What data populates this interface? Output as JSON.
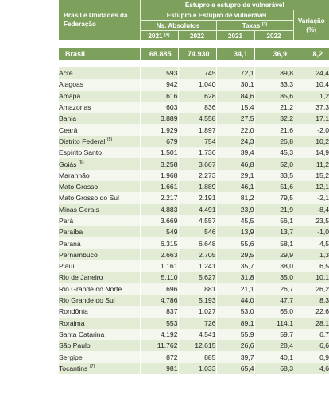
{
  "header": {
    "group_title": "Estupro e estupro de vulnerável",
    "sub_title": "Estupro e Estupro de vulnerável",
    "row_label_line1": "Brasil e Unidades da",
    "row_label_line2": "Federação",
    "abs_label": "Ns. Absolutos",
    "rate_label": "Taxas",
    "rate_note": "(3)",
    "var_label_line1": "Variação",
    "var_label_line2": "(%)",
    "year_2021": "2021",
    "year_2021_note": "(4)",
    "year_2022": "2022"
  },
  "total": {
    "uf": "Brasil",
    "abs2021": "68.885",
    "abs2022": "74.930",
    "rate2021": "34,1",
    "rate2022": "36,9",
    "var": "8,2"
  },
  "rows": [
    {
      "uf": "Acre",
      "note": "",
      "abs2021": "593",
      "abs2022": "745",
      "rate2021": "72,1",
      "rate2022": "89,8",
      "var": "24,4"
    },
    {
      "uf": "Alagoas",
      "note": "",
      "abs2021": "942",
      "abs2022": "1.040",
      "rate2021": "30,1",
      "rate2022": "33,3",
      "var": "10,4"
    },
    {
      "uf": "Amapá",
      "note": "",
      "abs2021": "616",
      "abs2022": "628",
      "rate2021": "84,6",
      "rate2022": "85,6",
      "var": "1,2"
    },
    {
      "uf": "Amazonas",
      "note": "",
      "abs2021": "603",
      "abs2022": "836",
      "rate2021": "15,4",
      "rate2022": "21,2",
      "var": "37,3"
    },
    {
      "uf": "Bahia",
      "note": "",
      "abs2021": "3.889",
      "abs2022": "4.558",
      "rate2021": "27,5",
      "rate2022": "32,2",
      "var": "17,1"
    },
    {
      "uf": "Ceará",
      "note": "",
      "abs2021": "1.929",
      "abs2022": "1.897",
      "rate2021": "22,0",
      "rate2022": "21,6",
      "var": "-2,0"
    },
    {
      "uf": "Distrito Federal",
      "note": "(5)",
      "abs2021": "679",
      "abs2022": "754",
      "rate2021": "24,3",
      "rate2022": "26,8",
      "var": "10,2"
    },
    {
      "uf": "Espírito Santo",
      "note": "",
      "abs2021": "1.501",
      "abs2022": "1.736",
      "rate2021": "39,4",
      "rate2022": "45,3",
      "var": "14,9"
    },
    {
      "uf": "Goiás",
      "note": "(6)",
      "abs2021": "3.258",
      "abs2022": "3.667",
      "rate2021": "46,8",
      "rate2022": "52,0",
      "var": "11,2"
    },
    {
      "uf": "Maranhão",
      "note": "",
      "abs2021": "1.968",
      "abs2022": "2.273",
      "rate2021": "29,1",
      "rate2022": "33,5",
      "var": "15,2"
    },
    {
      "uf": "Mato Grosso",
      "note": "",
      "abs2021": "1.661",
      "abs2022": "1.889",
      "rate2021": "46,1",
      "rate2022": "51,6",
      "var": "12,1"
    },
    {
      "uf": "Mato Grosso do Sul",
      "note": "",
      "abs2021": "2.217",
      "abs2022": "2.191",
      "rate2021": "81,2",
      "rate2022": "79,5",
      "var": "-2,1"
    },
    {
      "uf": "Minas Gerais",
      "note": "",
      "abs2021": "4.883",
      "abs2022": "4.491",
      "rate2021": "23,9",
      "rate2022": "21,9",
      "var": "-8,4"
    },
    {
      "uf": "Pará",
      "note": "",
      "abs2021": "3.669",
      "abs2022": "4.557",
      "rate2021": "45,5",
      "rate2022": "56,1",
      "var": "23,5"
    },
    {
      "uf": "Paraíba",
      "note": "",
      "abs2021": "549",
      "abs2022": "546",
      "rate2021": "13,9",
      "rate2022": "13,7",
      "var": "-1,0"
    },
    {
      "uf": "Paraná",
      "note": "",
      "abs2021": "6.315",
      "abs2022": "6.648",
      "rate2021": "55,6",
      "rate2022": "58,1",
      "var": "4,5"
    },
    {
      "uf": "Pernambuco",
      "note": "",
      "abs2021": "2.663",
      "abs2022": "2.705",
      "rate2021": "29,5",
      "rate2022": "29,9",
      "var": "1,3"
    },
    {
      "uf": "Piauí",
      "note": "",
      "abs2021": "1.161",
      "abs2022": "1.241",
      "rate2021": "35,7",
      "rate2022": "38,0",
      "var": "6,5"
    },
    {
      "uf": "Rio de Janeiro",
      "note": "",
      "abs2021": "5.110",
      "abs2022": "5.627",
      "rate2021": "31,8",
      "rate2022": "35,0",
      "var": "10,1"
    },
    {
      "uf": "Rio Grande do Norte",
      "note": "",
      "abs2021": "696",
      "abs2022": "881",
      "rate2021": "21,1",
      "rate2022": "26,7",
      "var": "26,2"
    },
    {
      "uf": "Rio Grande do Sul",
      "note": "",
      "abs2021": "4.786",
      "abs2022": "5.193",
      "rate2021": "44,0",
      "rate2022": "47,7",
      "var": "8,3"
    },
    {
      "uf": "Rondônia",
      "note": "",
      "abs2021": "837",
      "abs2022": "1.027",
      "rate2021": "53,0",
      "rate2022": "65,0",
      "var": "22,6"
    },
    {
      "uf": "Roraima",
      "note": "",
      "abs2021": "553",
      "abs2022": "726",
      "rate2021": "89,1",
      "rate2022": "114,1",
      "var": "28,1"
    },
    {
      "uf": "Santa Catarina",
      "note": "",
      "abs2021": "4.192",
      "abs2022": "4.541",
      "rate2021": "55,9",
      "rate2022": "59,7",
      "var": "6,7"
    },
    {
      "uf": "São Paulo",
      "note": "",
      "abs2021": "11.762",
      "abs2022": "12.615",
      "rate2021": "26,6",
      "rate2022": "28,4",
      "var": "6,6"
    },
    {
      "uf": "Sergipe",
      "note": "",
      "abs2021": "872",
      "abs2022": "885",
      "rate2021": "39,7",
      "rate2022": "40,1",
      "var": "0,9"
    },
    {
      "uf": "Tocantins",
      "note": "(7)",
      "abs2021": "981",
      "abs2022": "1.033",
      "rate2021": "65,4",
      "rate2022": "68,3",
      "var": "4,6"
    }
  ]
}
